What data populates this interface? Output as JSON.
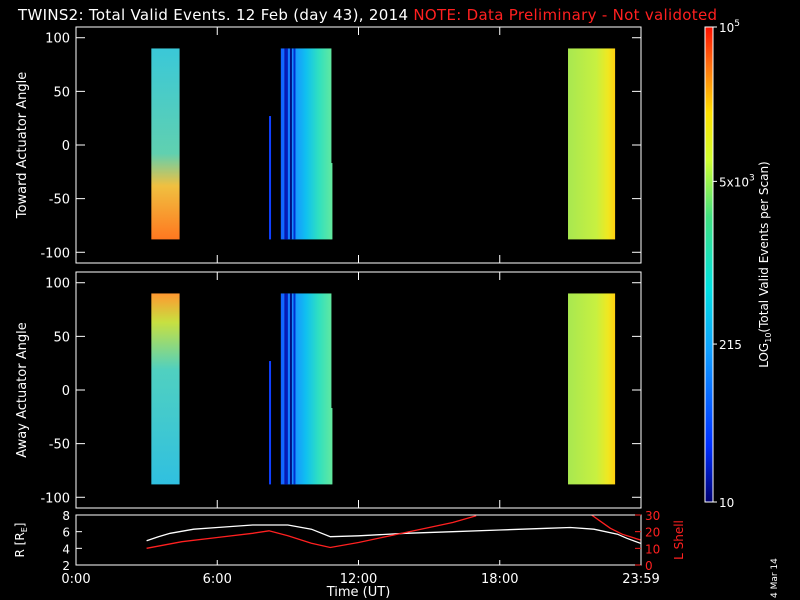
{
  "title": {
    "main": "TWINS2: Total Valid Events. 12 Feb (day  43), 2014",
    "note": "NOTE: Data Preliminary - Not validoted"
  },
  "stamp": "4 Mar 14",
  "chart_data": [
    {
      "type": "heatmap",
      "name": "toward",
      "ylabel": "Toward Actuator Angle",
      "ylim": [
        -110,
        110
      ],
      "yticks": [
        -100,
        -50,
        0,
        50,
        100
      ],
      "xlim": [
        0,
        24
      ],
      "xticks": [
        0,
        6,
        12,
        18,
        24
      ],
      "blocks": [
        {
          "start": 3.2,
          "end": 4.4,
          "ymin": -88,
          "ymax": 90,
          "style": "warm-bottom"
        },
        {
          "start": 8.2,
          "end": 8.28,
          "ymin": -88,
          "ymax": 27,
          "style": "blue-line"
        },
        {
          "start": 8.7,
          "end": 10.85,
          "ymin": -88,
          "ymax": 90,
          "style": "blue-cyan"
        },
        {
          "start": 20.9,
          "end": 22.9,
          "ymin": -88,
          "ymax": 90,
          "style": "yellow-green"
        }
      ]
    },
    {
      "type": "heatmap",
      "name": "away",
      "ylabel": "Away Actuator Angle",
      "ylim": [
        -110,
        110
      ],
      "yticks": [
        -100,
        -50,
        0,
        50,
        100
      ],
      "xlim": [
        0,
        24
      ],
      "xticks": [
        0,
        6,
        12,
        18,
        24
      ],
      "blocks": [
        {
          "start": 3.2,
          "end": 4.4,
          "ymin": -88,
          "ymax": 90,
          "style": "warm-top"
        },
        {
          "start": 8.2,
          "end": 8.28,
          "ymin": -88,
          "ymax": 27,
          "style": "blue-line"
        },
        {
          "start": 8.7,
          "end": 10.85,
          "ymin": -88,
          "ymax": 90,
          "style": "blue-cyan"
        },
        {
          "start": 20.9,
          "end": 22.9,
          "ymin": -88,
          "ymax": 90,
          "style": "yellow-green"
        }
      ]
    },
    {
      "type": "line",
      "name": "orbit",
      "ylabel_left": "R [R",
      "ylabel_left_sub": "E",
      "ylabel_left_end": "]",
      "ylabel_right": "L Shell",
      "ylim_left": [
        2,
        8
      ],
      "yticks_left": [
        2,
        4,
        6,
        8
      ],
      "ylim_right": [
        0,
        30
      ],
      "yticks_right": [
        0,
        10,
        20,
        30
      ],
      "xlabel": "Time (UT)",
      "xtick_labels": [
        "0:00",
        "6:00",
        "12:00",
        "18:00",
        "23:59"
      ],
      "xticks": [
        0,
        6,
        12,
        18,
        24
      ],
      "series": [
        {
          "color": "#ffffff",
          "axis": "left",
          "x": [
            3.0,
            3.5,
            4.0,
            5.0,
            6.0,
            7.5,
            9.0,
            10.0,
            10.8,
            12.0,
            14.0,
            16.0,
            18.0,
            20.0,
            21.0,
            22.0,
            23.0,
            23.4,
            23.98
          ],
          "y": [
            4.9,
            5.4,
            5.8,
            6.3,
            6.5,
            6.8,
            6.8,
            6.3,
            5.4,
            5.5,
            5.8,
            6.0,
            6.2,
            6.4,
            6.5,
            6.3,
            5.7,
            5.2,
            4.6
          ]
        },
        {
          "color": "#ff2020",
          "axis": "right",
          "x": [
            3.0,
            4.5,
            6.0,
            7.5,
            8.2,
            9.0,
            10.0,
            10.8,
            12.0,
            14.0,
            16.0,
            17.0
          ],
          "y": [
            10.0,
            14.0,
            16.5,
            19.0,
            20.5,
            17.5,
            13.0,
            10.5,
            13.5,
            19.5,
            25.5,
            29.5
          ]
        },
        {
          "color": "#ff2020",
          "axis": "right",
          "x": [
            21.9,
            22.3,
            22.7,
            23.2,
            23.98
          ],
          "y": [
            30.0,
            26.0,
            22.0,
            18.5,
            15.0
          ]
        }
      ]
    }
  ],
  "colorbar": {
    "ylabel_part1": "LOG",
    "ylabel_sub": "10",
    "ylabel_part2": "(Total Valid  Events per Scan)",
    "labels": [
      {
        "base": "10",
        "exp": "5",
        "level": 5
      },
      {
        "base": "5x10",
        "exp": "3",
        "level": 3.7
      },
      {
        "base": "215",
        "exp": "",
        "level": 2.33
      },
      {
        "base": "10",
        "exp": "",
        "level": 1
      }
    ],
    "range": [
      1,
      5
    ]
  }
}
